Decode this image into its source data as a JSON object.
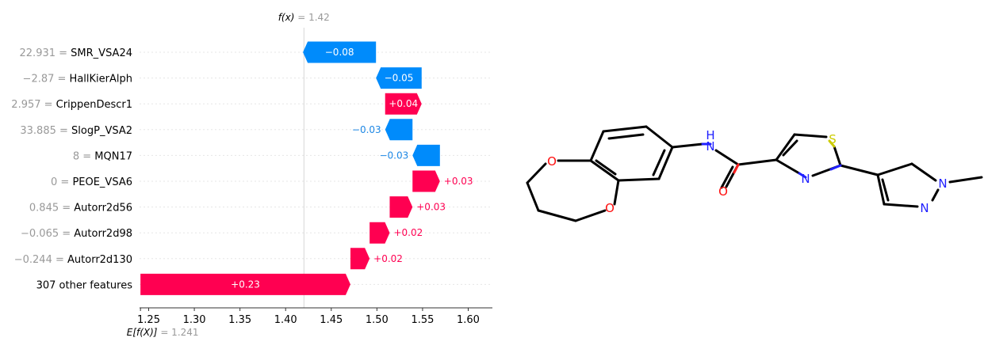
{
  "chart_data": {
    "type": "waterfall",
    "fx": {
      "label": "f(x)",
      "value": "1.42"
    },
    "base": {
      "label": "E[f(X)]",
      "value": "1.241"
    },
    "x_ticks": [
      "1.25",
      "1.30",
      "1.35",
      "1.40",
      "1.45",
      "1.50",
      "1.55",
      "1.60"
    ],
    "xlim": [
      1.24,
      1.6265
    ],
    "colors": {
      "positive": "#ff0051",
      "negative": "#008bfb",
      "neg_text": "#1e88e5",
      "pos_text": "#ff0051"
    },
    "features": [
      {
        "value": "22.931",
        "name": "SMR_VSA24",
        "contribution": -0.08,
        "label": "−0.08"
      },
      {
        "value": "−2.87",
        "name": "HallKierAlph",
        "contribution": -0.05,
        "label": "−0.05"
      },
      {
        "value": "2.957",
        "name": "CrippenDescr1",
        "contribution": 0.04,
        "label": "+0.04"
      },
      {
        "value": "33.885",
        "name": "SlogP_VSA2",
        "contribution": -0.03,
        "label": "−0.03"
      },
      {
        "value": "8",
        "name": "MQN17",
        "contribution": -0.03,
        "label": "−0.03"
      },
      {
        "value": "0",
        "name": "PEOE_VSA6",
        "contribution": 0.03,
        "label": "+0.03"
      },
      {
        "value": "0.845",
        "name": "Autorr2d56",
        "contribution": 0.025,
        "label": "+0.03"
      },
      {
        "value": "−0.065",
        "name": "Autorr2d98",
        "contribution": 0.022,
        "label": "+0.02"
      },
      {
        "value": "−0.244",
        "name": "Autorr2d130",
        "contribution": 0.021,
        "label": "+0.02"
      },
      {
        "value": "",
        "name": "307 other features",
        "contribution": 0.23,
        "label": "+0.23"
      }
    ]
  },
  "molecule": {
    "atoms": {
      "O1": "O",
      "O2": "O",
      "O3": "O",
      "NH_N": "N",
      "NH_H": "H",
      "S": "S",
      "N_thiazole": "N",
      "N_pyr1": "N",
      "N_pyr2": "N"
    }
  }
}
